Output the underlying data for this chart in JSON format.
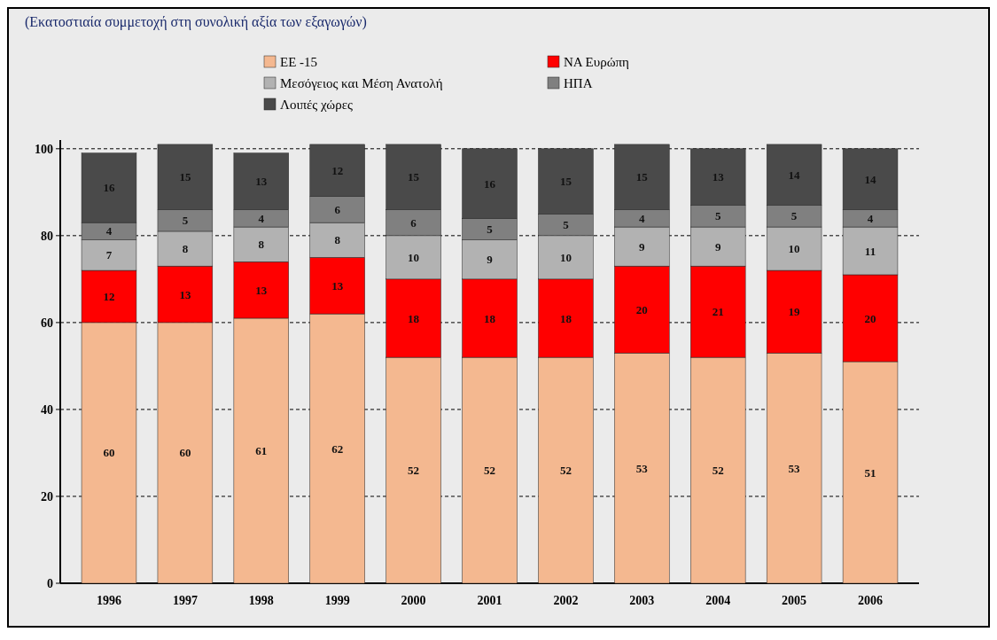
{
  "chart_data": {
    "type": "bar",
    "subtitle": "(Εκατοστιαία συμμετοχή στη συνολική αξία των εξαγωγών)",
    "stacked": true,
    "data_labels": true,
    "grid": "y",
    "legend": "top",
    "categories": [
      "1996",
      "1997",
      "1998",
      "1999",
      "2000",
      "2001",
      "2002",
      "2003",
      "2004",
      "2005",
      "2006"
    ],
    "ylim": [
      0,
      102
    ],
    "yticks": [
      0,
      20,
      40,
      60,
      80,
      100
    ],
    "series": [
      {
        "name": "ΕΕ -15",
        "color": "#f4b890",
        "values": [
          60,
          60,
          61,
          62,
          52,
          52,
          52,
          53,
          52,
          53,
          51
        ]
      },
      {
        "name": "ΝΑ Ευρώπη",
        "color": "#ff0000",
        "values": [
          12,
          13,
          13,
          13,
          18,
          18,
          18,
          20,
          21,
          19,
          20
        ]
      },
      {
        "name": "Μεσόγειος και Μέση Ανατολή",
        "color": "#b2b2b2",
        "values": [
          7,
          8,
          8,
          8,
          10,
          9,
          10,
          9,
          9,
          10,
          11
        ]
      },
      {
        "name": "ΗΠΑ",
        "color": "#808080",
        "values": [
          4,
          5,
          4,
          6,
          6,
          5,
          5,
          4,
          5,
          5,
          4
        ]
      },
      {
        "name": "Λοιπές χώρες",
        "color": "#4a4a4a",
        "values": [
          16,
          15,
          13,
          12,
          15,
          16,
          15,
          15,
          13,
          14,
          14
        ]
      }
    ]
  }
}
